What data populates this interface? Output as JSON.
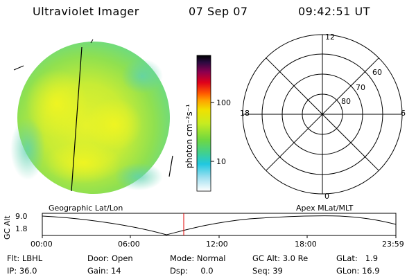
{
  "header": {
    "instrument": "Ultraviolet Imager",
    "date": "07 Sep 07",
    "time": "09:42:51 UT"
  },
  "colorbar": {
    "label": "photon cm⁻²s⁻¹",
    "ticks": [
      "100",
      "10"
    ]
  },
  "polar_plot": {
    "mlt_labels": {
      "top": "12",
      "left": "18",
      "right": "6",
      "bottom": "0"
    },
    "lat_labels": [
      "60",
      "70",
      "80"
    ]
  },
  "orbit_panel": {
    "left_title": "Geographic Lat/Lon",
    "right_title": "Apex MLat/MLT",
    "y_label": "GC Alt",
    "y_ticks": [
      "9.0",
      "1.8"
    ],
    "x_ticks": [
      "00:00",
      "06:00",
      "12:00",
      "18:00",
      "23:59"
    ]
  },
  "status": {
    "row1": [
      {
        "key": "Flt:",
        "value": "LBHL"
      },
      {
        "key": "Door:",
        "value": "Open"
      },
      {
        "key": "Mode:",
        "value": "Normal"
      },
      {
        "key": "GC Alt:",
        "value": "3.0 Re"
      },
      {
        "key": "GLat:",
        "value": "1.9"
      }
    ],
    "row2": [
      {
        "key": "IP:",
        "value": "36.0"
      },
      {
        "key": "Gain:",
        "value": "14"
      },
      {
        "key": "Dsp:",
        "value": "0.0"
      },
      {
        "key": "Seq:",
        "value": "39"
      },
      {
        "key": "GLon:",
        "value": "16.9"
      }
    ]
  }
}
